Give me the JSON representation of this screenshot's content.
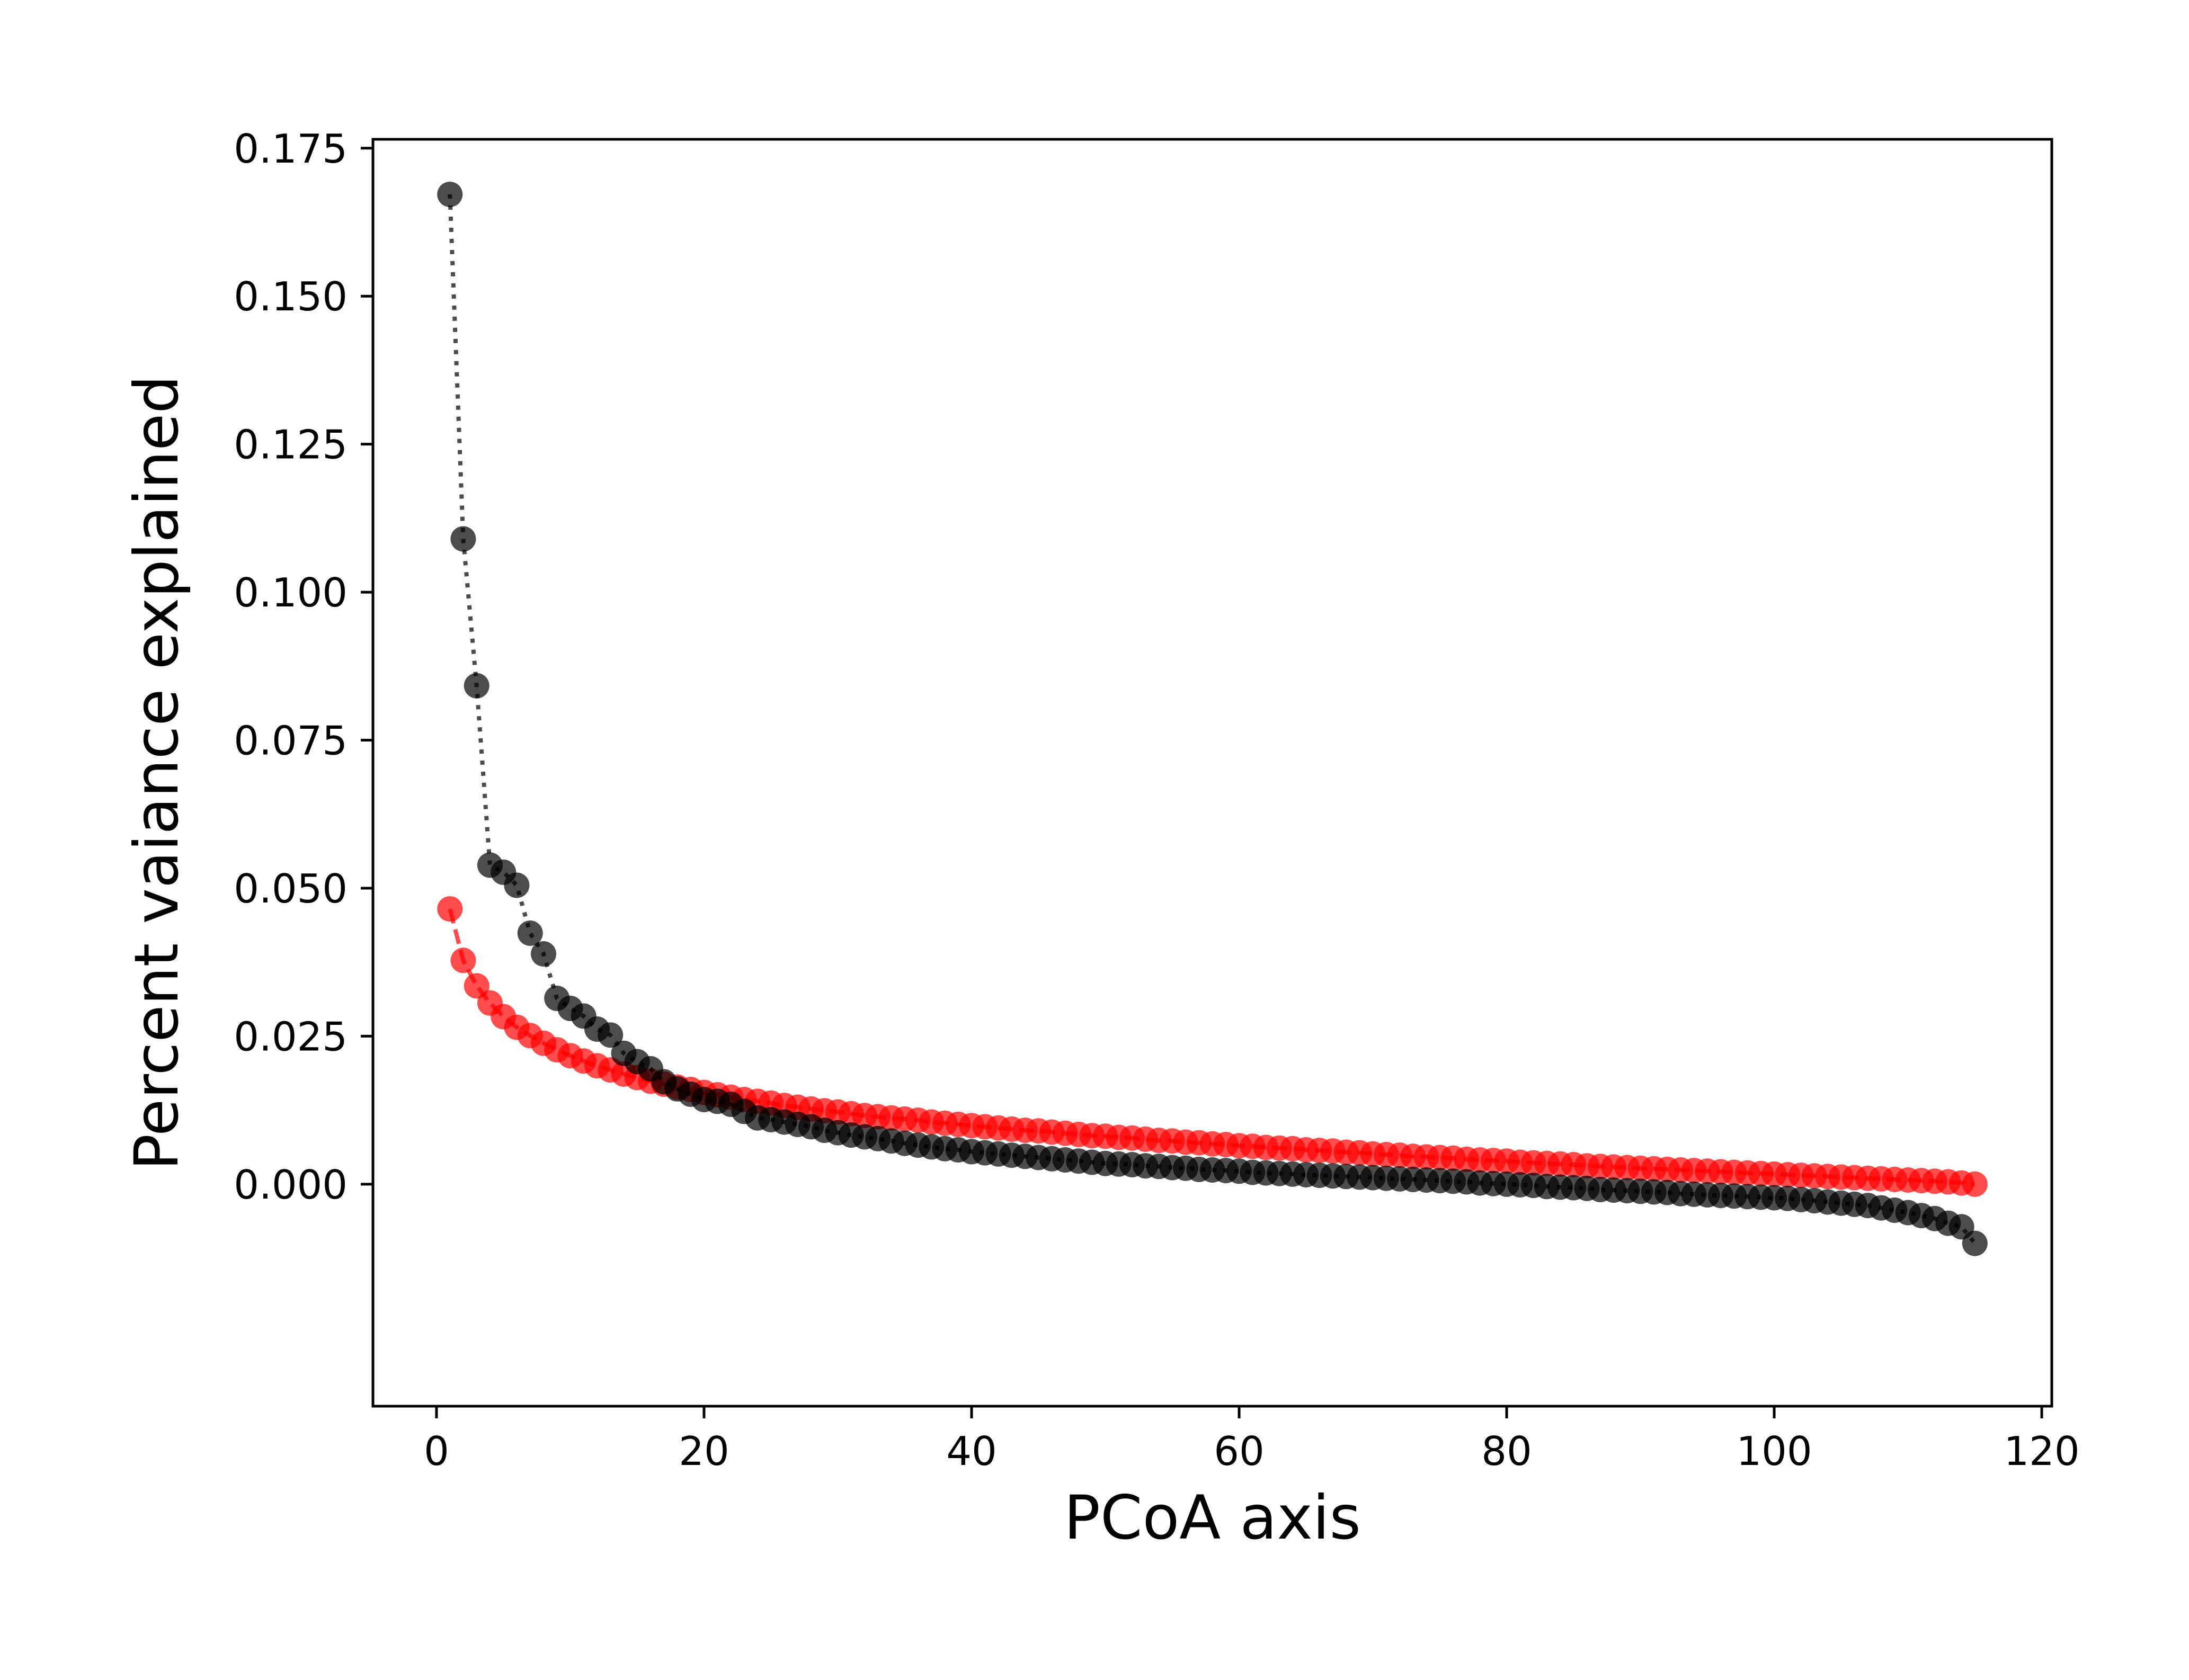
{
  "chart_data": {
    "type": "scatter",
    "xlabel": "PCoA axis",
    "ylabel": "Percent vaiance explained",
    "xlim": [
      -4.75,
      120.75
    ],
    "ylim": [
      -0.0375,
      0.1765
    ],
    "x_ticks": [
      0,
      20,
      40,
      60,
      80,
      100,
      120
    ],
    "y_ticks": [
      0.0,
      0.025,
      0.05,
      0.075,
      0.1,
      0.125,
      0.15,
      0.175
    ],
    "x_tick_labels": [
      "0",
      "20",
      "40",
      "60",
      "80",
      "100",
      "120"
    ],
    "y_tick_labels": [
      "0.000",
      "0.025",
      "0.050",
      "0.075",
      "0.100",
      "0.125",
      "0.150",
      "0.175"
    ],
    "grid": false,
    "legend": "none",
    "series": [
      {
        "color": "#ff0000",
        "line_style": "dashed",
        "marker": "circle",
        "alpha": 0.7,
        "x": [
          1,
          2,
          3,
          4,
          5,
          6,
          7,
          8,
          9,
          10,
          11,
          12,
          13,
          14,
          15,
          16,
          17,
          18,
          19,
          20,
          21,
          22,
          23,
          24,
          25,
          26,
          27,
          28,
          29,
          30,
          31,
          32,
          33,
          34,
          35,
          36,
          37,
          38,
          39,
          40,
          41,
          42,
          43,
          44,
          45,
          46,
          47,
          48,
          49,
          50,
          51,
          52,
          53,
          54,
          55,
          56,
          57,
          58,
          59,
          60,
          61,
          62,
          63,
          64,
          65,
          66,
          67,
          68,
          69,
          70,
          71,
          72,
          73,
          74,
          75,
          76,
          77,
          78,
          79,
          80,
          81,
          82,
          83,
          84,
          85,
          86,
          87,
          88,
          89,
          90,
          91,
          92,
          93,
          94,
          95,
          96,
          97,
          98,
          99,
          100,
          101,
          102,
          103,
          104,
          105,
          106,
          107,
          108,
          109,
          110,
          111,
          112,
          113,
          114,
          115
        ],
        "y": [
          0.0465,
          0.0378,
          0.0335,
          0.0306,
          0.0283,
          0.0265,
          0.0251,
          0.0238,
          0.0227,
          0.0217,
          0.0208,
          0.02,
          0.0193,
          0.0186,
          0.018,
          0.0174,
          0.0169,
          0.0164,
          0.016,
          0.0155,
          0.0151,
          0.0147,
          0.0143,
          0.014,
          0.0137,
          0.0133,
          0.013,
          0.0127,
          0.0124,
          0.0122,
          0.0119,
          0.0116,
          0.0114,
          0.0112,
          0.011,
          0.0108,
          0.0105,
          0.0103,
          0.0101,
          0.0099,
          0.0097,
          0.0095,
          0.0093,
          0.0091,
          0.009,
          0.0088,
          0.0086,
          0.0084,
          0.0082,
          0.0081,
          0.0079,
          0.0078,
          0.0076,
          0.0074,
          0.0073,
          0.0071,
          0.007,
          0.0068,
          0.0067,
          0.0065,
          0.0064,
          0.0062,
          0.0061,
          0.006,
          0.0058,
          0.0057,
          0.0056,
          0.0054,
          0.0053,
          0.0051,
          0.005,
          0.0049,
          0.0047,
          0.0046,
          0.0045,
          0.0044,
          0.0042,
          0.0041,
          0.004,
          0.0039,
          0.0037,
          0.0036,
          0.0035,
          0.0034,
          0.0033,
          0.0031,
          0.003,
          0.0029,
          0.0028,
          0.0027,
          0.0026,
          0.0025,
          0.0024,
          0.0023,
          0.0022,
          0.0021,
          0.002,
          0.0019,
          0.0018,
          0.0017,
          0.0016,
          0.0015,
          0.0014,
          0.0013,
          0.0012,
          0.0011,
          0.001,
          0.0009,
          0.0008,
          0.0007,
          0.0006,
          0.0005,
          0.0004,
          0.0002,
          0.0
        ]
      },
      {
        "color": "#000000",
        "line_style": "dotted",
        "marker": "circle",
        "alpha": 0.7,
        "x": [
          1,
          2,
          3,
          4,
          5,
          6,
          7,
          8,
          9,
          10,
          11,
          12,
          13,
          14,
          15,
          16,
          17,
          18,
          19,
          20,
          21,
          22,
          23,
          24,
          25,
          26,
          27,
          28,
          29,
          30,
          31,
          32,
          33,
          34,
          35,
          36,
          37,
          38,
          39,
          40,
          41,
          42,
          43,
          44,
          45,
          46,
          47,
          48,
          49,
          50,
          51,
          52,
          53,
          54,
          55,
          56,
          57,
          58,
          59,
          60,
          61,
          62,
          63,
          64,
          65,
          66,
          67,
          68,
          69,
          70,
          71,
          72,
          73,
          74,
          75,
          76,
          77,
          78,
          79,
          80,
          81,
          82,
          83,
          84,
          85,
          86,
          87,
          88,
          89,
          90,
          91,
          92,
          93,
          94,
          95,
          96,
          97,
          98,
          99,
          100,
          101,
          102,
          103,
          104,
          105,
          106,
          107,
          108,
          109,
          110,
          111,
          112,
          113,
          114,
          115
        ],
        "y": [
          0.1672,
          0.109,
          0.0842,
          0.0539,
          0.0527,
          0.0505,
          0.0424,
          0.0389,
          0.0314,
          0.0297,
          0.0284,
          0.0262,
          0.0252,
          0.0221,
          0.0207,
          0.0195,
          0.0173,
          0.0161,
          0.0152,
          0.0143,
          0.014,
          0.0135,
          0.0123,
          0.0112,
          0.0109,
          0.0105,
          0.0101,
          0.0097,
          0.0091,
          0.0087,
          0.0083,
          0.008,
          0.0077,
          0.0073,
          0.0069,
          0.0066,
          0.0063,
          0.006,
          0.0058,
          0.0055,
          0.0053,
          0.0051,
          0.0049,
          0.0047,
          0.0045,
          0.0043,
          0.0041,
          0.0039,
          0.0037,
          0.0035,
          0.0034,
          0.0033,
          0.0031,
          0.003,
          0.0028,
          0.0027,
          0.0025,
          0.0024,
          0.0023,
          0.0022,
          0.002,
          0.0019,
          0.0018,
          0.0017,
          0.0016,
          0.0015,
          0.0014,
          0.0013,
          0.0012,
          0.0011,
          0.001,
          0.0009,
          0.0008,
          0.0007,
          0.0006,
          0.0005,
          0.0004,
          0.0002,
          0.0001,
          0.0,
          -0.0001,
          -0.0002,
          -0.0004,
          -0.0005,
          -0.0006,
          -0.0007,
          -0.0009,
          -0.001,
          -0.0011,
          -0.0012,
          -0.0013,
          -0.0014,
          -0.0016,
          -0.0017,
          -0.0018,
          -0.0019,
          -0.002,
          -0.0021,
          -0.0022,
          -0.0023,
          -0.0024,
          -0.0026,
          -0.0028,
          -0.003,
          -0.0032,
          -0.0034,
          -0.0036,
          -0.004,
          -0.0044,
          -0.0048,
          -0.0053,
          -0.0058,
          -0.0066,
          -0.0072,
          -0.01
        ]
      }
    ]
  }
}
